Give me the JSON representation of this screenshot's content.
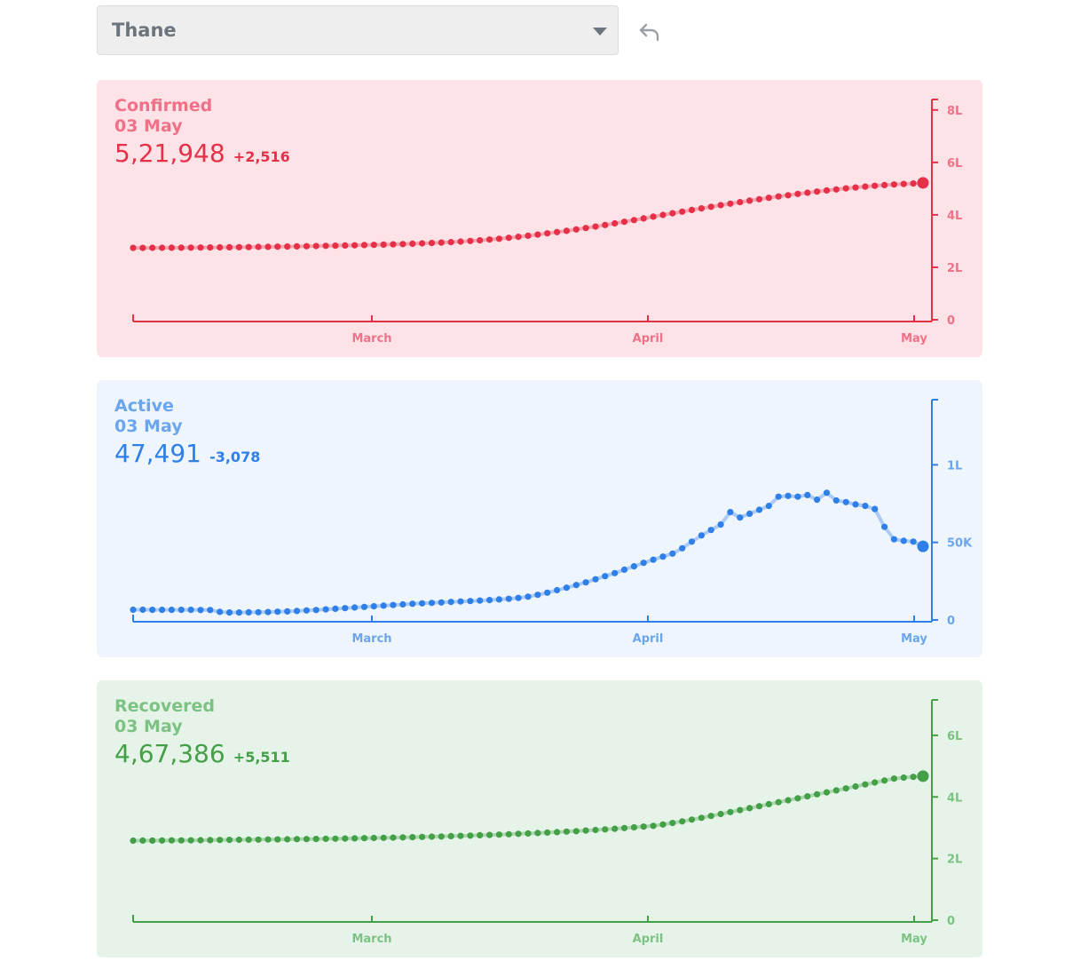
{
  "header": {
    "district_select": "Thane",
    "undo_icon": "undo-icon"
  },
  "chart_data": [
    {
      "type": "scatter",
      "name": "confirmed",
      "label": "Confirmed",
      "date": "03 May",
      "total": "5,21,948",
      "delta": "+2,516",
      "colors": {
        "bg": "#fde3e7",
        "stroke": "#e53048",
        "label": "#f07088"
      },
      "y_ticks": [
        {
          "v": 0,
          "t": "0"
        },
        {
          "v": 200000,
          "t": "2L"
        },
        {
          "v": 400000,
          "t": "4L"
        },
        {
          "v": 600000,
          "t": "6L"
        },
        {
          "v": 800000,
          "t": "8L"
        }
      ],
      "ylim": [
        0,
        840000
      ],
      "x_ticks": [
        "March",
        "April",
        "May"
      ],
      "legend": "none",
      "values": [
        274000,
        274000,
        274200,
        274400,
        274600,
        274800,
        275000,
        275300,
        275600,
        276000,
        276400,
        276800,
        277200,
        277700,
        278200,
        278700,
        279200,
        279800,
        280400,
        281100,
        281800,
        282500,
        283200,
        284000,
        284800,
        285700,
        286600,
        287600,
        288700,
        289900,
        291200,
        292600,
        294200,
        296000,
        298000,
        300300,
        302900,
        305800,
        309000,
        312500,
        316300,
        320400,
        324800,
        329400,
        334200,
        339200,
        344400,
        349800,
        355400,
        361300,
        367400,
        373700,
        380100,
        386600,
        393100,
        399600,
        406000,
        412300,
        418500,
        424700,
        430800,
        436800,
        442700,
        448500,
        454100,
        459600,
        464900,
        470000,
        475000,
        479800,
        484400,
        488800,
        493000,
        497000,
        500800,
        504400,
        507800,
        510800,
        513500,
        515800,
        517800,
        519500,
        521948
      ]
    },
    {
      "type": "scatter",
      "name": "active",
      "label": "Active",
      "date": "03 May",
      "total": "47,491",
      "delta": "-3,078",
      "colors": {
        "bg": "#eef5fd",
        "stroke": "#2f7fe8",
        "label": "#6aa5ee"
      },
      "y_ticks": [
        {
          "v": 0,
          "t": "0"
        },
        {
          "v": 50000,
          "t": "50K"
        },
        {
          "v": 100000,
          "t": "1L"
        }
      ],
      "ylim": [
        0,
        142000
      ],
      "x_ticks": [
        "March",
        "April",
        "May"
      ],
      "legend": "none",
      "values": [
        6600,
        6600,
        6500,
        6500,
        6500,
        6500,
        6500,
        6400,
        6400,
        5200,
        4800,
        4800,
        4900,
        5000,
        5100,
        5300,
        5500,
        5800,
        6100,
        6400,
        6800,
        7200,
        7600,
        8000,
        8400,
        8800,
        9200,
        9600,
        10000,
        10400,
        10700,
        11000,
        11300,
        11600,
        11900,
        12200,
        12500,
        12800,
        13200,
        13600,
        14200,
        15000,
        16200,
        17600,
        19200,
        20800,
        22500,
        24200,
        26200,
        28200,
        30200,
        32400,
        34600,
        36800,
        38800,
        40800,
        42800,
        46200,
        50500,
        54500,
        58000,
        61500,
        69500,
        66000,
        68500,
        71000,
        73500,
        79500,
        80000,
        79500,
        80500,
        77500,
        82000,
        77000,
        76000,
        74500,
        73500,
        71500,
        60000,
        52000,
        51000,
        50500,
        47491
      ]
    },
    {
      "type": "scatter",
      "name": "recovered",
      "label": "Recovered",
      "date": "03 May",
      "total": "4,67,386",
      "delta": "+5,511",
      "colors": {
        "bg": "#e6f3e8",
        "stroke": "#43a047",
        "label": "#7cc282"
      },
      "y_ticks": [
        {
          "v": 0,
          "t": "0"
        },
        {
          "v": 200000,
          "t": "2L"
        },
        {
          "v": 400000,
          "t": "4L"
        },
        {
          "v": 600000,
          "t": "6L"
        }
      ],
      "ylim": [
        0,
        715000
      ],
      "x_ticks": [
        "March",
        "April",
        "May"
      ],
      "legend": "none",
      "values": [
        258000,
        258200,
        258400,
        258600,
        258800,
        259000,
        259300,
        259600,
        259900,
        260200,
        260500,
        260800,
        261100,
        261400,
        261700,
        262000,
        262400,
        262800,
        263200,
        263600,
        264000,
        264500,
        265000,
        265500,
        266100,
        266700,
        267300,
        267900,
        268600,
        269300,
        270100,
        270900,
        271700,
        272600,
        273500,
        274500,
        275500,
        276600,
        277700,
        278900,
        280100,
        281400,
        282800,
        284200,
        285700,
        287300,
        289000,
        290800,
        292700,
        294700,
        296800,
        299000,
        301300,
        303700,
        306200,
        310600,
        315400,
        320600,
        326300,
        332200,
        338300,
        344500,
        350800,
        357200,
        363600,
        370000,
        376400,
        382800,
        389200,
        395600,
        402000,
        408400,
        414800,
        421200,
        427600,
        434000,
        440400,
        446800,
        453200,
        459600,
        462700,
        465000,
        467386
      ]
    }
  ]
}
